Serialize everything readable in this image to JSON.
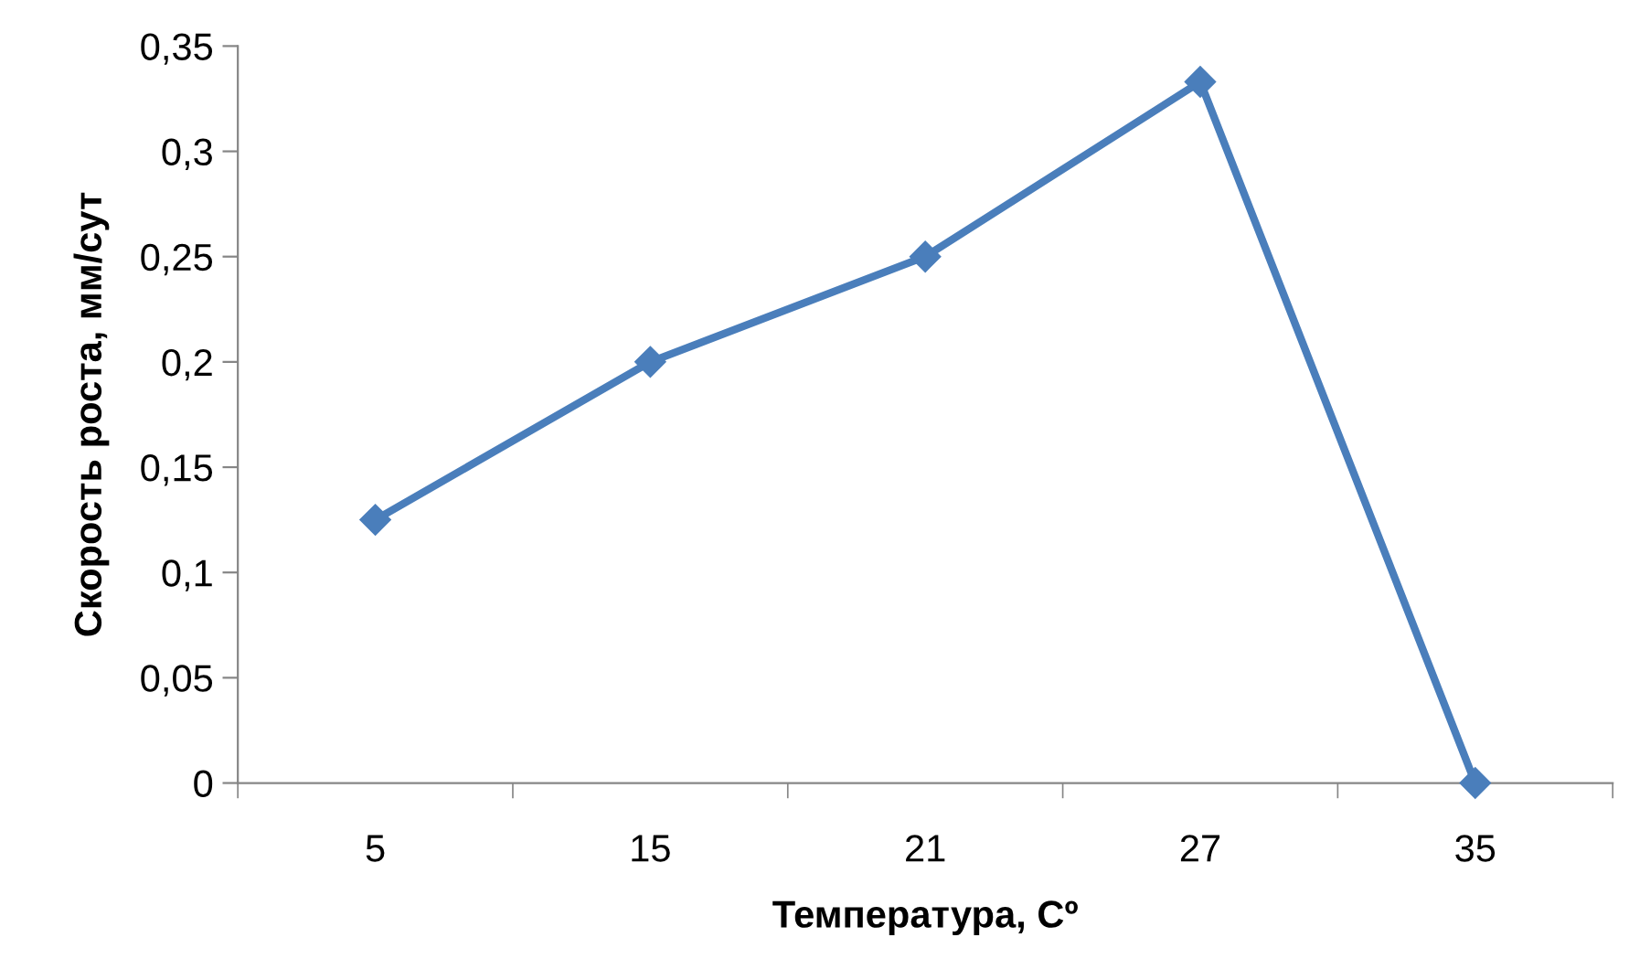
{
  "chart_data": {
    "type": "line",
    "xlabel": "Температура, Сº",
    "ylabel": "Скорость роста, мм/сут",
    "categories": [
      "5",
      "15",
      "21",
      "27",
      "35"
    ],
    "series": [
      {
        "color": "#4a7ebb",
        "values": [
          0.125,
          0.2,
          0.25,
          0.333,
          0
        ]
      }
    ],
    "ylim": [
      0,
      0.35
    ],
    "yticks": [
      0,
      {
        "value": 0.05,
        "label": "0,05"
      },
      {
        "value": 0.1,
        "label": "0,1"
      },
      {
        "value": 0.15,
        "label": "0,15"
      },
      {
        "value": 0.2,
        "label": "0,2"
      },
      {
        "value": 0.25,
        "label": "0,25"
      },
      {
        "value": 0.3,
        "label": "0,3"
      },
      {
        "value": 0.35,
        "label": "0,35"
      }
    ],
    "marker": "diamond",
    "line_style": "solid",
    "grid": false,
    "legend": false
  }
}
